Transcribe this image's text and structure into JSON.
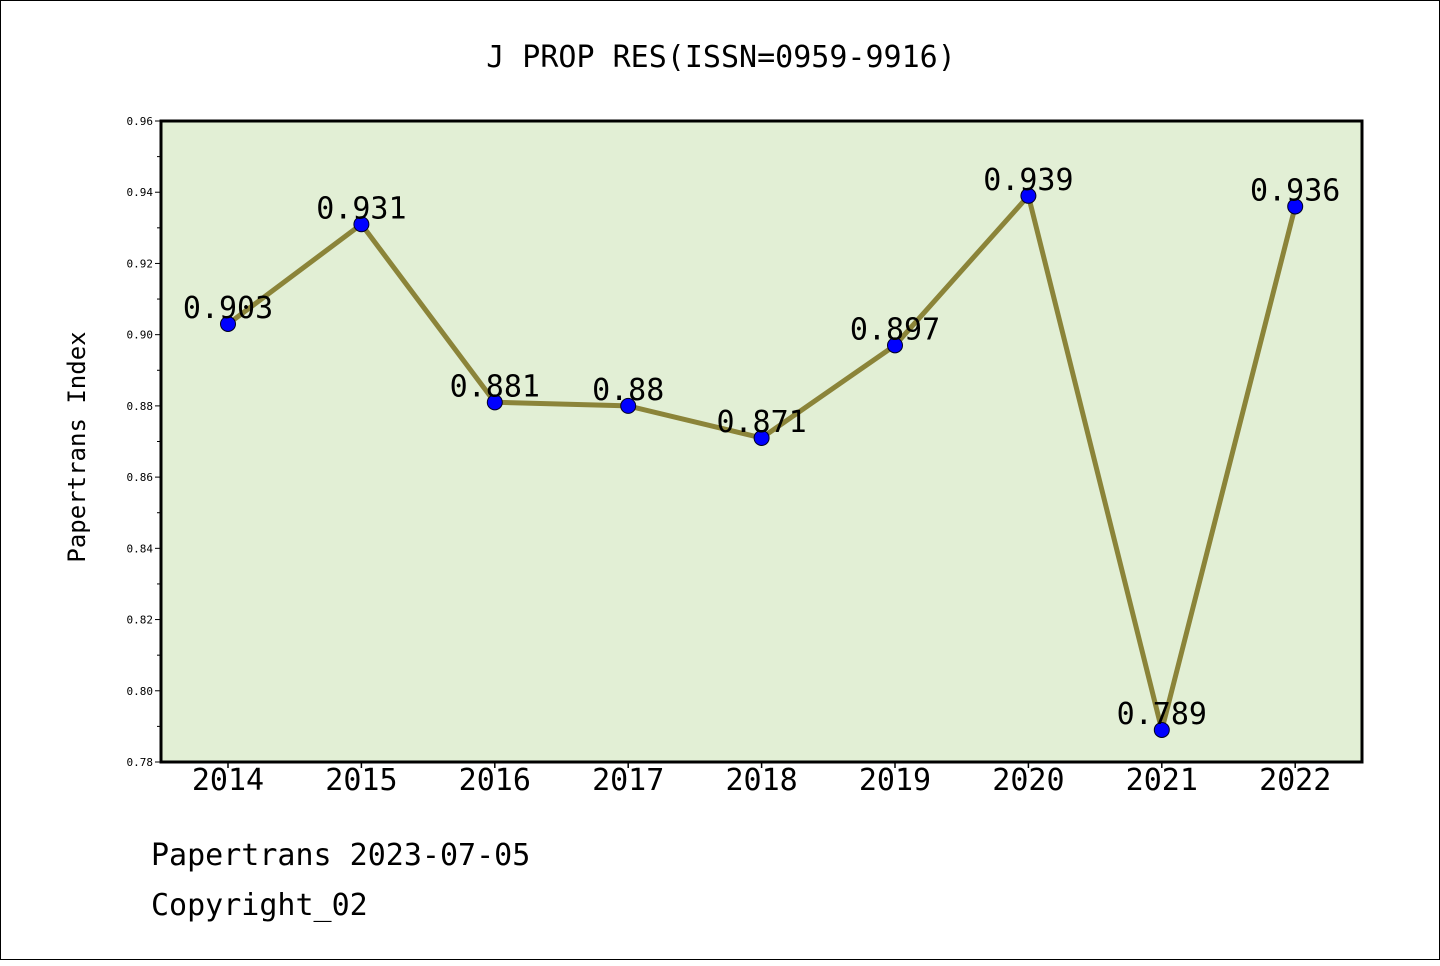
{
  "chart_data": {
    "type": "line",
    "title": "J PROP RES(ISSN=0959-9916)",
    "xlabel": "",
    "ylabel": "Papertrans Index",
    "categories": [
      "2014",
      "2015",
      "2016",
      "2017",
      "2018",
      "2019",
      "2020",
      "2021",
      "2022"
    ],
    "values": [
      0.903,
      0.931,
      0.881,
      0.88,
      0.871,
      0.897,
      0.939,
      0.789,
      0.936
    ],
    "data_labels": [
      "0.903",
      "0.931",
      "0.881",
      "0.88",
      "0.871",
      "0.897",
      "0.939",
      "0.789",
      "0.936"
    ],
    "ylim": [
      0.78,
      0.96
    ],
    "yticks": [
      "0.78",
      "0.80",
      "0.82",
      "0.84",
      "0.86",
      "0.88",
      "0.90",
      "0.92",
      "0.94",
      "0.96"
    ],
    "grid": false,
    "legend": "none",
    "colors": {
      "plot_background": "#e2efd5",
      "line": "#8b8439",
      "marker": "#0000ff",
      "axes": "#000000"
    }
  },
  "footer": {
    "date_line": "Papertrans 2023-07-05",
    "copyright": "Copyright_02"
  }
}
